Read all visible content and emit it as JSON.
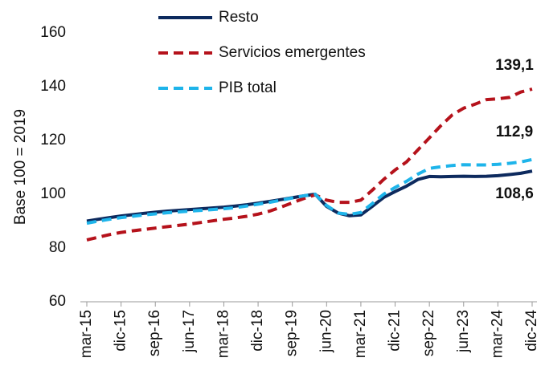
{
  "chart_data": {
    "type": "line",
    "ylabel": "Base 100 = 2019",
    "categories": [
      "mar-15",
      null,
      null,
      "dic-15",
      null,
      null,
      "sep-16",
      null,
      null,
      "jun-17",
      null,
      null,
      "mar-18",
      null,
      null,
      "dic-18",
      null,
      null,
      "sep-19",
      null,
      null,
      "jun-20",
      null,
      null,
      "mar-21",
      null,
      null,
      "dic-21",
      null,
      null,
      "sep-22",
      null,
      null,
      "jun-23",
      null,
      null,
      "mar-24",
      null,
      null,
      "dic-24"
    ],
    "ylim": [
      60,
      160
    ],
    "yticks": [
      60,
      80,
      100,
      120,
      140,
      160
    ],
    "grid": false,
    "legend": "top",
    "series": [
      {
        "name": "Resto",
        "color": "#0d2a5e",
        "dash": false,
        "values": [
          90.0,
          90.7,
          91.3,
          91.9,
          92.4,
          92.9,
          93.3,
          93.7,
          94.0,
          94.3,
          94.6,
          94.9,
          95.2,
          95.6,
          96.1,
          96.7,
          97.3,
          98.0,
          98.7,
          99.4,
          100.0,
          95.5,
          93.0,
          92.0,
          92.3,
          95.5,
          98.8,
          101.0,
          103.0,
          105.5,
          106.6,
          106.5,
          106.6,
          106.7,
          106.6,
          106.7,
          106.9,
          107.3,
          107.8,
          108.6
        ],
        "value_labels": [
          null,
          null,
          null,
          null,
          null,
          null,
          null,
          null,
          null,
          null,
          null,
          null,
          null,
          null,
          null,
          null,
          null,
          null,
          null,
          null,
          null,
          null,
          null,
          null,
          null,
          null,
          null,
          null,
          null,
          null,
          null,
          null,
          null,
          null,
          null,
          null,
          null,
          null,
          null,
          "108,6"
        ]
      },
      {
        "name": "Servicios emergentes",
        "color": "#b5121b",
        "dash": true,
        "values": [
          83.0,
          84.0,
          85.0,
          85.8,
          86.4,
          86.9,
          87.4,
          87.9,
          88.4,
          88.9,
          89.5,
          90.1,
          90.7,
          91.2,
          91.8,
          92.6,
          93.7,
          95.2,
          96.8,
          98.4,
          99.8,
          97.8,
          97.0,
          97.0,
          97.8,
          101.5,
          105.5,
          109.0,
          112.0,
          116.5,
          121.0,
          125.5,
          129.5,
          132.0,
          133.5,
          135.2,
          135.5,
          136.0,
          138.0,
          139.1
        ],
        "value_labels": [
          null,
          null,
          null,
          null,
          null,
          null,
          null,
          null,
          null,
          null,
          null,
          null,
          null,
          null,
          null,
          null,
          null,
          null,
          null,
          null,
          null,
          null,
          null,
          null,
          null,
          null,
          null,
          null,
          null,
          null,
          null,
          null,
          null,
          null,
          null,
          null,
          null,
          null,
          null,
          "139,1"
        ]
      },
      {
        "name": "PIB total",
        "color": "#1eb4ea",
        "dash": true,
        "values": [
          89.2,
          90.0,
          90.7,
          91.3,
          91.8,
          92.3,
          92.7,
          93.1,
          93.4,
          93.7,
          94.0,
          94.3,
          94.6,
          95.0,
          95.6,
          96.3,
          97.0,
          97.8,
          98.6,
          99.4,
          100.0,
          95.8,
          93.0,
          92.5,
          93.2,
          96.5,
          100.0,
          102.5,
          104.8,
          107.5,
          109.6,
          110.2,
          110.7,
          111.0,
          110.9,
          110.9,
          111.1,
          111.5,
          112.0,
          112.9
        ],
        "value_labels": [
          null,
          null,
          null,
          null,
          null,
          null,
          null,
          null,
          null,
          null,
          null,
          null,
          null,
          null,
          null,
          null,
          null,
          null,
          null,
          null,
          null,
          null,
          null,
          null,
          null,
          null,
          null,
          null,
          null,
          null,
          null,
          null,
          null,
          null,
          null,
          null,
          null,
          null,
          null,
          "112,9"
        ]
      }
    ]
  }
}
